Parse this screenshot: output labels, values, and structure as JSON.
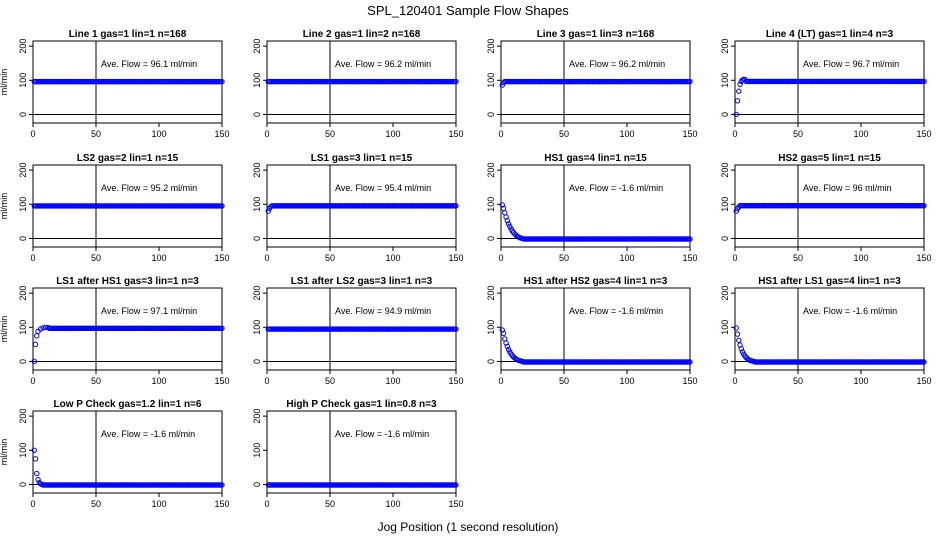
{
  "figure": {
    "title": "SPL_120401  Sample Flow Shapes",
    "xlabel": "Jog Position (1 second resolution)",
    "ylabel": "ml/min",
    "point_color": "#0000ff"
  },
  "chart_data": [
    {
      "type": "scatter",
      "title": "Line 1 gas=1 lin=1 n=168",
      "annotation": "Ave. Flow = 96.1  ml/min",
      "xlim": [
        0,
        150
      ],
      "ylim": [
        -25,
        215
      ],
      "xticks": [
        0,
        50,
        100,
        150
      ],
      "yticks": [
        0,
        100,
        200
      ],
      "vline": 50,
      "hline": 0,
      "shape": "flat",
      "plateau": 96.1
    },
    {
      "type": "scatter",
      "title": "Line 2 gas=1 lin=2 n=168",
      "annotation": "Ave. Flow = 96.2  ml/min",
      "xlim": [
        0,
        150
      ],
      "ylim": [
        -25,
        215
      ],
      "xticks": [
        0,
        50,
        100,
        150
      ],
      "yticks": [
        0,
        100,
        200
      ],
      "vline": 50,
      "hline": 0,
      "shape": "flat",
      "plateau": 96.2
    },
    {
      "type": "scatter",
      "title": "Line 3 gas=1 lin=3 n=168",
      "annotation": "Ave. Flow = 96.2  ml/min",
      "xlim": [
        0,
        150
      ],
      "ylim": [
        -25,
        215
      ],
      "xticks": [
        0,
        50,
        100,
        150
      ],
      "yticks": [
        0,
        100,
        200
      ],
      "vline": 50,
      "hline": 0,
      "shape": "rise",
      "plateau": 96.2,
      "start_points": [
        [
          1,
          86
        ],
        [
          2,
          93
        ]
      ]
    },
    {
      "type": "scatter",
      "title": "Line 4 (LT) gas=1 lin=4 n=3",
      "annotation": "Ave. Flow = 96.7  ml/min",
      "xlim": [
        0,
        150
      ],
      "ylim": [
        -25,
        215
      ],
      "xticks": [
        0,
        50,
        100,
        150
      ],
      "yticks": [
        0,
        100,
        200
      ],
      "vline": 50,
      "hline": 0,
      "shape": "rise",
      "plateau": 96.7,
      "start_points": [
        [
          1,
          0
        ],
        [
          2,
          40
        ],
        [
          3,
          68
        ],
        [
          4,
          88
        ],
        [
          5,
          97
        ],
        [
          6,
          101
        ],
        [
          7,
          103
        ],
        [
          8,
          102
        ]
      ]
    },
    {
      "type": "scatter",
      "title": "LS2 gas=2 lin=1 n=15",
      "annotation": "Ave. Flow = 95.2  ml/min",
      "xlim": [
        0,
        150
      ],
      "ylim": [
        -25,
        215
      ],
      "xticks": [
        0,
        50,
        100,
        150
      ],
      "yticks": [
        0,
        100,
        200
      ],
      "vline": 50,
      "hline": 0,
      "shape": "flat",
      "plateau": 95.2
    },
    {
      "type": "scatter",
      "title": "LS1 gas=3 lin=1 n=15",
      "annotation": "Ave. Flow = 95.4  ml/min",
      "xlim": [
        0,
        150
      ],
      "ylim": [
        -25,
        215
      ],
      "xticks": [
        0,
        50,
        100,
        150
      ],
      "yticks": [
        0,
        100,
        200
      ],
      "vline": 50,
      "hline": 0,
      "shape": "rise",
      "plateau": 95.4,
      "start_points": [
        [
          1,
          80
        ],
        [
          2,
          88
        ],
        [
          3,
          93
        ]
      ]
    },
    {
      "type": "scatter",
      "title": "HS1 gas=4 lin=1 n=15",
      "annotation": "Ave. Flow = -1.6  ml/min",
      "xlim": [
        0,
        150
      ],
      "ylim": [
        -25,
        215
      ],
      "xticks": [
        0,
        50,
        100,
        150
      ],
      "yticks": [
        0,
        100,
        200
      ],
      "vline": 50,
      "hline": 0,
      "shape": "decay",
      "plateau": -1.6,
      "start_points": [
        [
          1,
          98
        ],
        [
          2,
          88
        ],
        [
          3,
          75
        ],
        [
          4,
          63
        ],
        [
          5,
          52
        ],
        [
          6,
          43
        ],
        [
          7,
          35
        ],
        [
          8,
          28
        ],
        [
          9,
          22
        ],
        [
          10,
          17
        ],
        [
          11,
          13
        ],
        [
          12,
          9
        ],
        [
          13,
          6
        ],
        [
          14,
          4
        ],
        [
          15,
          2
        ],
        [
          16,
          1
        ],
        [
          17,
          0
        ]
      ]
    },
    {
      "type": "scatter",
      "title": "HS2 gas=5 lin=1 n=15",
      "annotation": "Ave. Flow = 96  ml/min",
      "xlim": [
        0,
        150
      ],
      "ylim": [
        -25,
        215
      ],
      "xticks": [
        0,
        50,
        100,
        150
      ],
      "yticks": [
        0,
        100,
        200
      ],
      "vline": 50,
      "hline": 0,
      "shape": "rise",
      "plateau": 96,
      "start_points": [
        [
          1,
          80
        ],
        [
          2,
          87
        ],
        [
          3,
          92
        ]
      ]
    },
    {
      "type": "scatter",
      "title": "LS1 after HS1 gas=3 lin=1 n=3",
      "annotation": "Ave. Flow = 97.1  ml/min",
      "xlim": [
        0,
        150
      ],
      "ylim": [
        -25,
        215
      ],
      "xticks": [
        0,
        50,
        100,
        150
      ],
      "yticks": [
        0,
        100,
        200
      ],
      "vline": 50,
      "hline": 0,
      "shape": "rise",
      "plateau": 97.1,
      "start_points": [
        [
          1,
          0
        ],
        [
          2,
          50
        ],
        [
          3,
          75
        ],
        [
          4,
          88
        ],
        [
          6,
          95
        ],
        [
          8,
          98
        ],
        [
          10,
          100
        ],
        [
          12,
          99
        ]
      ]
    },
    {
      "type": "scatter",
      "title": "LS1 after LS2 gas=3 lin=1 n=3",
      "annotation": "Ave. Flow = 94.9  ml/min",
      "xlim": [
        0,
        150
      ],
      "ylim": [
        -25,
        215
      ],
      "xticks": [
        0,
        50,
        100,
        150
      ],
      "yticks": [
        0,
        100,
        200
      ],
      "vline": 50,
      "hline": 0,
      "shape": "flat",
      "plateau": 94.9
    },
    {
      "type": "scatter",
      "title": "HS1 after HS2 gas=4 lin=1 n=3",
      "annotation": "Ave. Flow = -1.6  ml/min",
      "xlim": [
        0,
        150
      ],
      "ylim": [
        -25,
        215
      ],
      "xticks": [
        0,
        50,
        100,
        150
      ],
      "yticks": [
        0,
        100,
        200
      ],
      "vline": 50,
      "hline": 0,
      "shape": "decay",
      "plateau": -1.6,
      "start_points": [
        [
          1,
          92
        ],
        [
          2,
          82
        ],
        [
          3,
          66
        ],
        [
          4,
          54
        ],
        [
          5,
          44
        ],
        [
          6,
          35
        ],
        [
          7,
          28
        ],
        [
          8,
          22
        ],
        [
          9,
          17
        ],
        [
          10,
          13
        ],
        [
          11,
          10
        ],
        [
          12,
          7
        ],
        [
          13,
          5
        ],
        [
          14,
          3
        ],
        [
          15,
          2
        ],
        [
          16,
          1
        ],
        [
          17,
          0
        ]
      ]
    },
    {
      "type": "scatter",
      "title": "HS1 after LS1 gas=4 lin=1 n=3",
      "annotation": "Ave. Flow = -1.6  ml/min",
      "xlim": [
        0,
        150
      ],
      "ylim": [
        -25,
        215
      ],
      "xticks": [
        0,
        50,
        100,
        150
      ],
      "yticks": [
        0,
        100,
        200
      ],
      "vline": 50,
      "hline": 0,
      "shape": "decay",
      "plateau": -1.6,
      "start_points": [
        [
          1,
          98
        ],
        [
          2,
          80
        ],
        [
          3,
          62
        ],
        [
          4,
          48
        ],
        [
          5,
          37
        ],
        [
          6,
          28
        ],
        [
          7,
          21
        ],
        [
          8,
          15
        ],
        [
          9,
          11
        ],
        [
          10,
          8
        ],
        [
          11,
          5
        ],
        [
          12,
          3
        ],
        [
          13,
          2
        ],
        [
          14,
          1
        ],
        [
          15,
          0
        ]
      ]
    },
    {
      "type": "scatter",
      "title": "Low P Check gas=1.2 lin=1 n=6",
      "annotation": "Ave. Flow = -1.6  ml/min",
      "xlim": [
        0,
        150
      ],
      "ylim": [
        -25,
        215
      ],
      "xticks": [
        0,
        50,
        100,
        150
      ],
      "yticks": [
        0,
        100,
        200
      ],
      "vline": 50,
      "hline": 0,
      "shape": "decay",
      "plateau": -1.6,
      "start_points": [
        [
          1,
          100
        ],
        [
          2,
          75
        ],
        [
          3,
          32
        ],
        [
          4,
          14
        ],
        [
          5,
          5
        ],
        [
          6,
          2
        ],
        [
          7,
          0
        ]
      ]
    },
    {
      "type": "scatter",
      "title": "High P Check gas=1 lin=0.8 n=3",
      "annotation": "Ave. Flow = -1.6  ml/min",
      "xlim": [
        0,
        150
      ],
      "ylim": [
        -25,
        215
      ],
      "xticks": [
        0,
        50,
        100,
        150
      ],
      "yticks": [
        0,
        100,
        200
      ],
      "vline": 50,
      "hline": 0,
      "shape": "flat",
      "plateau": -1.6
    }
  ]
}
